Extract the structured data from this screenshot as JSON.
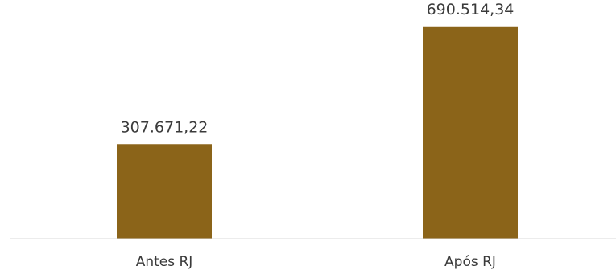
{
  "chart_data": {
    "type": "bar",
    "categories": [
      "Antes RJ",
      "Após RJ"
    ],
    "values": [
      307671.22,
      690514.34
    ],
    "data_labels": [
      "307.671,22",
      "690.514,34"
    ],
    "title": "",
    "xlabel": "",
    "ylabel": "",
    "ylim": [
      0,
      750000
    ],
    "grid": false,
    "legend": "none",
    "bar_color": "#8B6419",
    "axis_color": "#d9d9d9"
  }
}
